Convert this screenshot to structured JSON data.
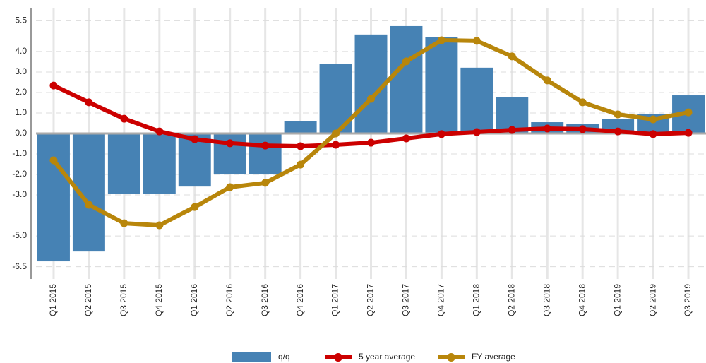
{
  "chart_data": {
    "type": "bar_line",
    "categories": [
      "Q1 2015",
      "Q2 2015",
      "Q3 2015",
      "Q4 2015",
      "Q1 2016",
      "Q2 2016",
      "Q3 2016",
      "Q4 2016",
      "Q1 2017",
      "Q2 2017",
      "Q3 2017",
      "Q4 2017",
      "Q1 2018",
      "Q2 2018",
      "Q3 2018",
      "Q4 2018",
      "Q1 2019",
      "Q2 2019",
      "Q3 2019"
    ],
    "series": [
      {
        "name": "q/q",
        "type": "bar",
        "color": "#4682b4",
        "values": [
          -6.24,
          -5.76,
          -2.93,
          -2.93,
          -2.59,
          -2.0,
          -2.0,
          0.62,
          3.41,
          4.83,
          5.24,
          4.69,
          3.21,
          1.76,
          0.55,
          0.48,
          0.72,
          0.93,
          1.86
        ]
      },
      {
        "name": "5 year average",
        "type": "line",
        "color": "#cc0000",
        "values": [
          2.34,
          1.52,
          0.72,
          0.1,
          -0.28,
          -0.48,
          -0.59,
          -0.62,
          -0.55,
          -0.45,
          -0.24,
          -0.03,
          0.07,
          0.17,
          0.24,
          0.21,
          0.1,
          -0.03,
          0.03
        ]
      },
      {
        "name": "FY average",
        "type": "line",
        "color": "#b8860b",
        "values": [
          -1.31,
          -3.48,
          -4.38,
          -4.48,
          -3.59,
          -2.62,
          -2.41,
          -1.52,
          0.0,
          1.69,
          3.52,
          4.55,
          4.52,
          3.76,
          2.59,
          1.52,
          0.93,
          0.69,
          1.03
        ]
      }
    ],
    "ylim": [
      -7.1,
      6.1
    ],
    "yticks": [
      {
        "value": 5.5,
        "label": "5.5"
      },
      {
        "value": 4,
        "label": "4.0"
      },
      {
        "value": 3,
        "label": "3.0"
      },
      {
        "value": 2,
        "label": "2.0"
      },
      {
        "value": 1,
        "label": "1.0"
      },
      {
        "value": 0,
        "label": "0.0"
      },
      {
        "value": -1,
        "label": "-1.0"
      },
      {
        "value": -2,
        "label": "-2.0"
      },
      {
        "value": -3,
        "label": "-3.0"
      },
      {
        "value": -5,
        "label": "-5.0"
      },
      {
        "value": -6.5,
        "label": "-6.5"
      }
    ],
    "grid": true,
    "legend": "bottom"
  }
}
